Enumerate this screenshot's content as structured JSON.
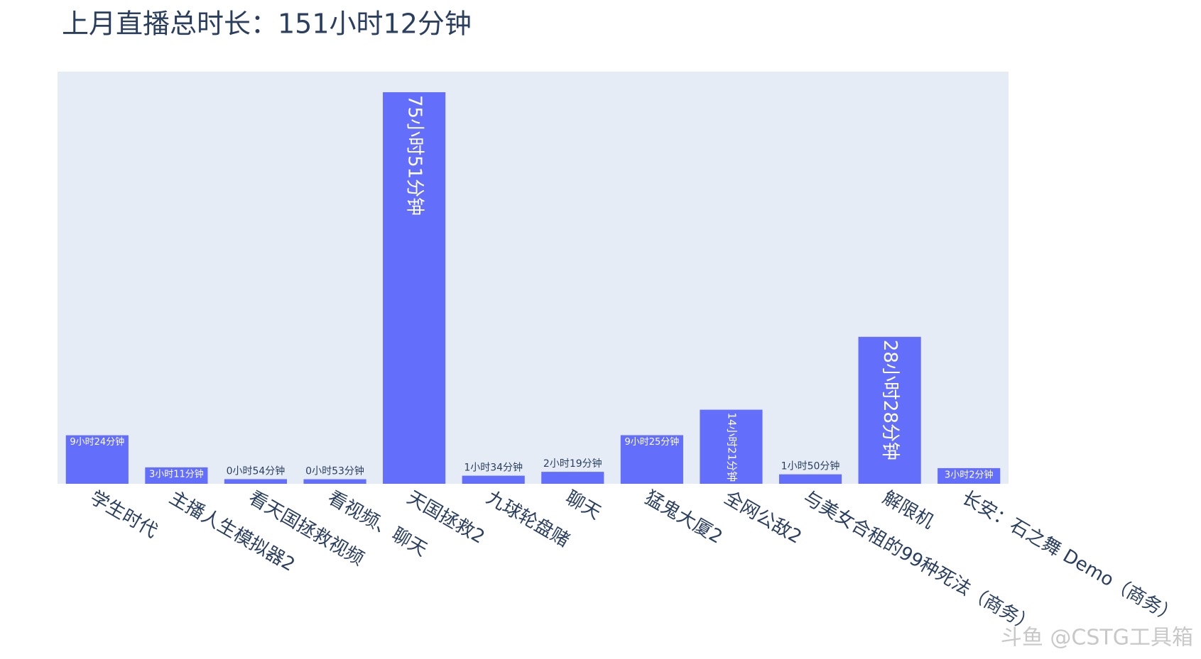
{
  "chart_data": {
    "type": "bar",
    "title": "上月直播总时长：151小时12分钟",
    "categories": [
      "学生时代",
      "主播人生模拟器2",
      "看天国拯救视频",
      "看视频、聊天",
      "天国拯救2",
      "九球轮盘赌",
      "聊天",
      "猛鬼大厦2",
      "全网公敌2",
      "与美女合租的99种死法（商务）",
      "解限机",
      "长安：石之舞 Demo（商务）"
    ],
    "values": [
      564,
      191,
      54,
      53,
      4551,
      94,
      139,
      565,
      861,
      110,
      1708,
      182
    ],
    "value_labels": [
      "9小时24分钟",
      "3小时11分钟",
      "0小时54分钟",
      "0小时53分钟",
      "75小时51分钟",
      "1小时34分钟",
      "2小时19分钟",
      "9小时25分钟",
      "14小时21分钟",
      "1小时50分钟",
      "28小时28分钟",
      "3小时2分钟"
    ],
    "color": "#636efa",
    "ylim": [
      0,
      4790
    ],
    "watermark": "斗鱼 @CSTG工具箱"
  }
}
